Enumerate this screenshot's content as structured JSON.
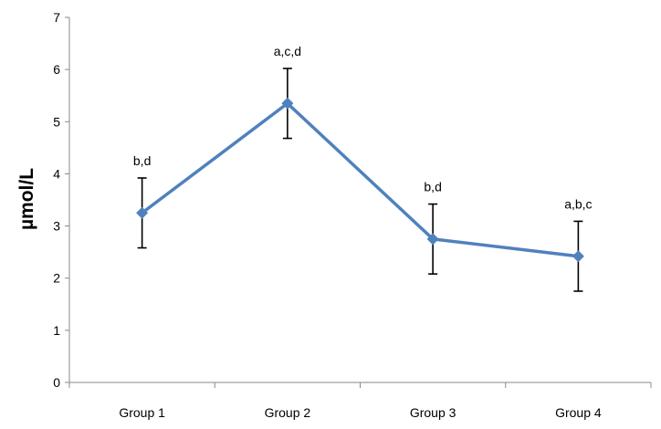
{
  "chart_data": {
    "type": "line",
    "title": "",
    "xlabel": "",
    "ylabel": "µmol/L",
    "ylim": [
      0,
      7
    ],
    "yticks": [
      0,
      1,
      2,
      3,
      4,
      5,
      6,
      7
    ],
    "grid": false,
    "legend": "none",
    "categories": [
      "Group 1",
      "Group 2",
      "Group 3",
      "Group 4"
    ],
    "series": [
      {
        "values": [
          3.25,
          5.35,
          2.75,
          2.42
        ],
        "error": [
          0.67,
          0.67,
          0.67,
          0.67
        ],
        "annotations": [
          "b,d",
          "a,c,d",
          "b,d",
          "a,b,c"
        ],
        "color": "#4f81bd",
        "marker": "diamond"
      }
    ]
  }
}
